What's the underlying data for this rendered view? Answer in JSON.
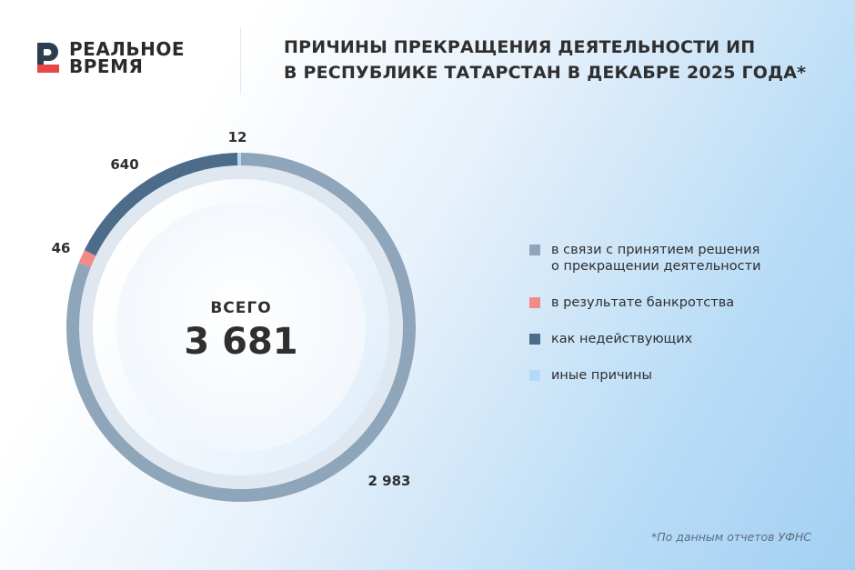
{
  "brand": {
    "line1": "РЕАЛЬНОЕ",
    "line2": "ВРЕМЯ"
  },
  "title": {
    "line1": "ПРИЧИНЫ ПРЕКРАЩЕНИЯ ДЕЯТЕЛЬНОСТИ ИП",
    "line2": "В РЕСПУБЛИКЕ ТАТАРСТАН В ДЕКАБРЕ 2025 ГОДА*"
  },
  "chart_data": {
    "type": "pie",
    "title": "ПРИЧИНЫ ПРЕКРАЩЕНИЯ ДЕЯТЕЛЬНОСТИ ИП В РЕСПУБЛИКЕ ТАТАРСТАН В ДЕКАБРЕ 2025 ГОДА*",
    "total_label": "ВСЕГО",
    "total_value": "3 681",
    "slices": [
      {
        "name": "в связи с принятием решения\nо прекращении деятельности",
        "value": 2983,
        "label": "2 983",
        "color": "#8ea5ba"
      },
      {
        "name": "в результате банкротства",
        "value": 46,
        "label": "46",
        "color": "#f28b87"
      },
      {
        "name": "как недействующих",
        "value": 640,
        "label": "640",
        "color": "#4d6c8a"
      },
      {
        "name": "иные причины",
        "value": 12,
        "label": "12",
        "color": "#b3dbf5"
      }
    ]
  },
  "footnote": "*По данным отчетов УФНС"
}
